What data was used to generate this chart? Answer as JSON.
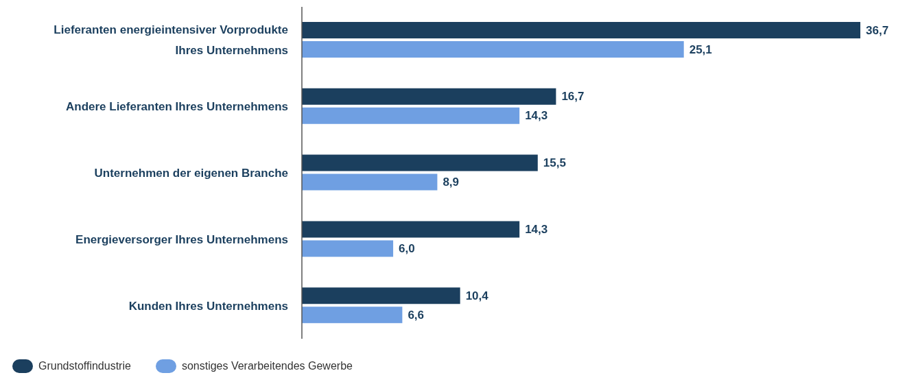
{
  "chart_data": {
    "type": "bar",
    "orientation": "horizontal",
    "categories": [
      "Lieferanten energieintensiver Vorprodukte Ihres Unternehmens",
      "Andere Lieferanten Ihres Unternehmens",
      "Unternehmen der eigenen Branche",
      "Energieversorger Ihres Unternehmens",
      "Kunden Ihres Unternehmens"
    ],
    "series": [
      {
        "name": "Grundstoffindustrie",
        "color": "#1b3f5e",
        "values": [
          36.7,
          16.7,
          15.5,
          14.3,
          10.4
        ],
        "value_labels": [
          "36,7",
          "16,7",
          "15,5",
          "14,3",
          "10,4"
        ]
      },
      {
        "name": "sonstiges Verarbeitendes Gewerbe",
        "color": "#6f9fe2",
        "values": [
          25.1,
          14.3,
          8.9,
          6.0,
          6.6
        ],
        "value_labels": [
          "25,1",
          "14,3",
          "8,9",
          "6,0",
          "6,6"
        ]
      }
    ],
    "legend": "bottom left",
    "grid": false
  }
}
